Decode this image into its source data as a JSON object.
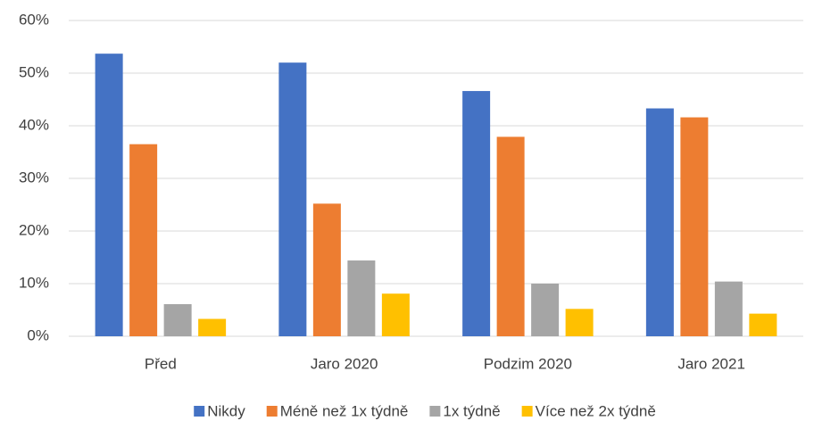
{
  "chart_data": {
    "type": "bar",
    "categories": [
      "Před",
      "Jaro 2020",
      "Podzim 2020",
      "Jaro 2021"
    ],
    "series": [
      {
        "name": "Nikdy",
        "color": "#4472c4",
        "values": [
          53.7,
          52.0,
          46.6,
          43.3
        ]
      },
      {
        "name": "Méně než 1x týdně",
        "color": "#ed7d31",
        "values": [
          36.5,
          25.2,
          37.9,
          41.6
        ]
      },
      {
        "name": "1x týdně",
        "color": "#a5a5a5",
        "values": [
          6.1,
          14.4,
          10.0,
          10.4
        ]
      },
      {
        "name": "Více než 2x týdně",
        "color": "#ffc000",
        "values": [
          3.3,
          8.1,
          5.2,
          4.3
        ]
      }
    ],
    "ylim": [
      0,
      60
    ],
    "yticks": [
      {
        "value": 0,
        "label": "0%"
      },
      {
        "value": 10,
        "label": "10%"
      },
      {
        "value": 20,
        "label": "20%"
      },
      {
        "value": 30,
        "label": "30%"
      },
      {
        "value": 40,
        "label": "40%"
      },
      {
        "value": 50,
        "label": "50%"
      },
      {
        "value": 60,
        "label": "60%"
      }
    ],
    "grid": true,
    "legend": "bottom"
  }
}
